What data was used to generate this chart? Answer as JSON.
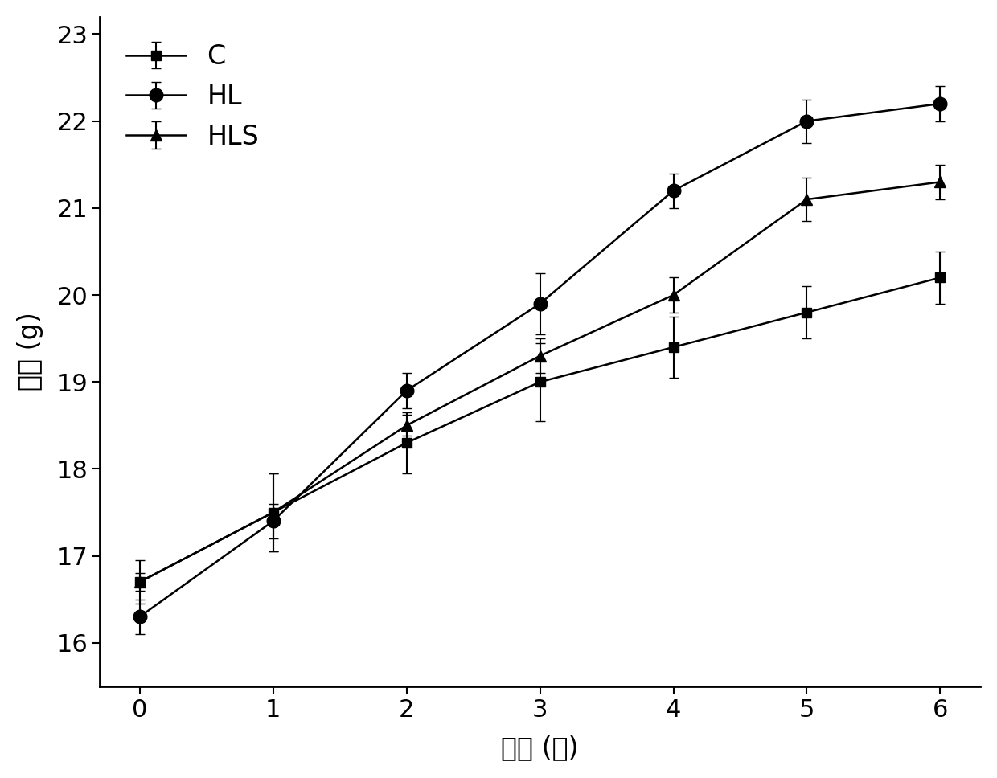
{
  "x": [
    0,
    1,
    2,
    3,
    4,
    5,
    6
  ],
  "C_y": [
    16.7,
    17.5,
    18.3,
    19.0,
    19.4,
    19.8,
    20.2
  ],
  "HL_y": [
    16.3,
    17.4,
    18.9,
    19.9,
    21.2,
    22.0,
    22.2
  ],
  "HLS_y": [
    16.7,
    17.5,
    18.5,
    19.3,
    20.0,
    21.1,
    21.3
  ],
  "C_err": [
    0.25,
    0.45,
    0.35,
    0.45,
    0.35,
    0.3,
    0.3
  ],
  "HL_err": [
    0.2,
    0.2,
    0.2,
    0.35,
    0.2,
    0.25,
    0.2
  ],
  "HLS_err": [
    0.1,
    0.45,
    0.12,
    0.2,
    0.2,
    0.25,
    0.2
  ],
  "xlabel": "时间 (周)",
  "ylabel": "体重 (g)",
  "ylim_min": 15.5,
  "ylim_max": 23.2,
  "xlim_min": -0.3,
  "xlim_max": 6.3,
  "yticks": [
    16,
    17,
    18,
    19,
    20,
    21,
    22,
    23
  ],
  "xticks": [
    0,
    1,
    2,
    3,
    4,
    5,
    6
  ],
  "legend_labels": [
    "C",
    "HL",
    "HLS"
  ],
  "line_color": "#000000",
  "marker_C": "s",
  "marker_HL": "o",
  "marker_HLS": "^",
  "markersize_C": 9,
  "markersize_HL": 12,
  "markersize_HLS": 10,
  "linewidth": 1.8,
  "capsize": 4,
  "elinewidth": 1.5,
  "xlabel_fontsize": 24,
  "ylabel_fontsize": 24,
  "tick_fontsize": 22,
  "legend_fontsize": 24,
  "background_color": "#ffffff"
}
